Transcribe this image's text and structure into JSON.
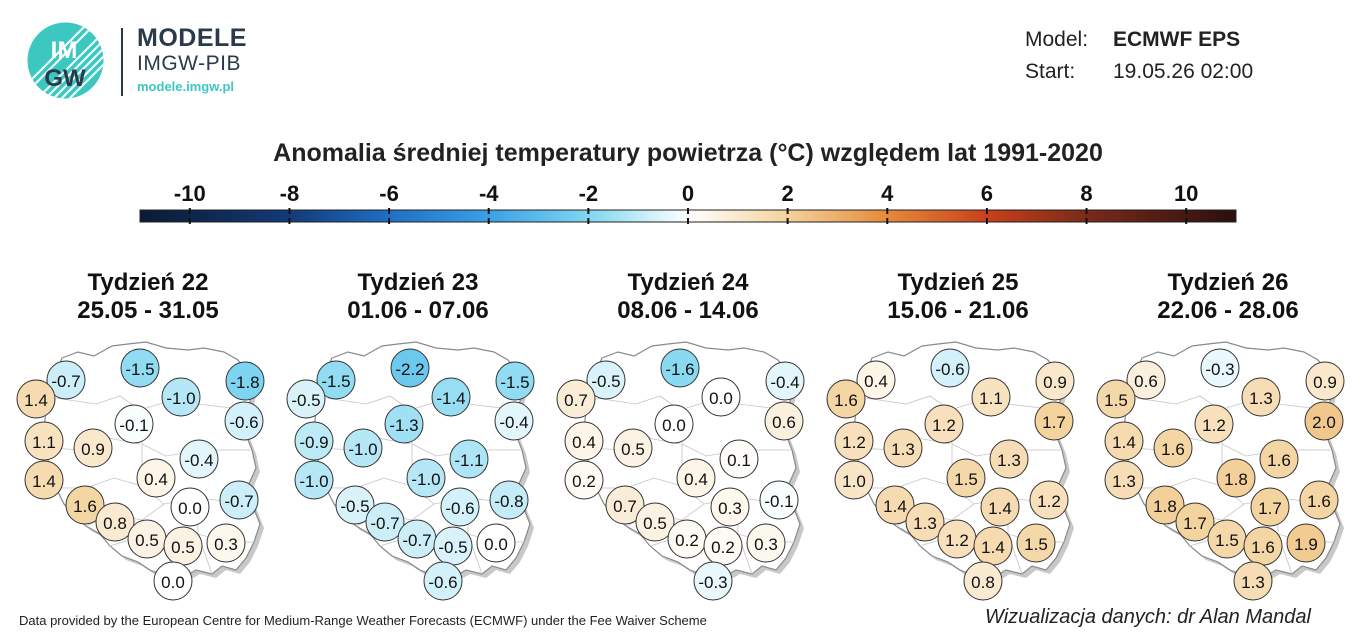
{
  "header": {
    "logo_top": "IM",
    "logo_bottom": "GW",
    "brand_name": "MODELE",
    "brand_sub": "IMGW-PIB",
    "brand_url": "modele.imgw.pl",
    "model_label": "Model:",
    "model_value": "ECMWF EPS",
    "start_label": "Start:",
    "start_value": "19.05.26 02:00"
  },
  "title": "Anomalia średniej temperatury powietrza (°C) względem lat 1991-2020",
  "colorbar": {
    "min": -11,
    "max": 11,
    "ticks": [
      -10,
      -8,
      -6,
      -4,
      -2,
      0,
      2,
      4,
      6,
      8,
      10
    ],
    "tick_labels": [
      "-10",
      "-8",
      "-6",
      "-4",
      "-2",
      "0",
      "2",
      "4",
      "6",
      "8",
      "10"
    ],
    "stops": [
      {
        "v": -11,
        "color": "#0b1a33"
      },
      {
        "v": -8,
        "color": "#123a78"
      },
      {
        "v": -6,
        "color": "#1f6fc4"
      },
      {
        "v": -4,
        "color": "#3aa0e6"
      },
      {
        "v": -2,
        "color": "#7fd6f0"
      },
      {
        "v": 0,
        "color": "#ffffff"
      },
      {
        "v": 2,
        "color": "#f3d29c"
      },
      {
        "v": 4,
        "color": "#e68a3a"
      },
      {
        "v": 6,
        "color": "#c8401a"
      },
      {
        "v": 8,
        "color": "#7a2a1a"
      },
      {
        "v": 11,
        "color": "#2a0f0f"
      }
    ]
  },
  "weeks": [
    {
      "name": "Tydzień 22",
      "dates": "25.05 - 31.05",
      "stations": [
        {
          "id": "szczecin",
          "value": -0.7
        },
        {
          "id": "gdansk",
          "value": -1.5
        },
        {
          "id": "olsztyn",
          "value": -1.0
        },
        {
          "id": "suwalki",
          "value": -1.8
        },
        {
          "id": "bialystok",
          "value": -0.6
        },
        {
          "id": "gorzow",
          "value": 1.4
        },
        {
          "id": "bydgoszcz",
          "value": -0.1
        },
        {
          "id": "poznan",
          "value": 0.9
        },
        {
          "id": "zielona-gora",
          "value": 1.1
        },
        {
          "id": "warszawa",
          "value": -0.4
        },
        {
          "id": "lodz",
          "value": 0.4
        },
        {
          "id": "wroclaw-w",
          "value": 1.4
        },
        {
          "id": "wroclaw",
          "value": 1.6
        },
        {
          "id": "opole",
          "value": 0.8
        },
        {
          "id": "katowice",
          "value": 0.5
        },
        {
          "id": "krakow",
          "value": 0.5
        },
        {
          "id": "kielce",
          "value": 0.0
        },
        {
          "id": "lublin",
          "value": -0.7
        },
        {
          "id": "rzeszow",
          "value": 0.3
        },
        {
          "id": "zakopane",
          "value": 0.0
        }
      ]
    },
    {
      "name": "Tydzień 23",
      "dates": "01.06 - 07.06",
      "stations": [
        {
          "id": "szczecin",
          "value": -1.5
        },
        {
          "id": "gdansk",
          "value": -2.2
        },
        {
          "id": "olsztyn",
          "value": -1.4
        },
        {
          "id": "suwalki",
          "value": -1.5
        },
        {
          "id": "bialystok",
          "value": -0.4
        },
        {
          "id": "gorzow",
          "value": -0.5
        },
        {
          "id": "bydgoszcz",
          "value": -1.3
        },
        {
          "id": "poznan",
          "value": -1.0
        },
        {
          "id": "zielona-gora",
          "value": -0.9
        },
        {
          "id": "warszawa",
          "value": -1.1
        },
        {
          "id": "lodz",
          "value": -1.0
        },
        {
          "id": "wroclaw-w",
          "value": -1.0
        },
        {
          "id": "wroclaw",
          "value": -0.5
        },
        {
          "id": "opole",
          "value": -0.7
        },
        {
          "id": "katowice",
          "value": -0.7
        },
        {
          "id": "krakow",
          "value": -0.5
        },
        {
          "id": "kielce",
          "value": -0.6
        },
        {
          "id": "lublin",
          "value": -0.8
        },
        {
          "id": "rzeszow",
          "value": 0.0
        },
        {
          "id": "zakopane",
          "value": -0.6
        }
      ]
    },
    {
      "name": "Tydzień 24",
      "dates": "08.06 - 14.06",
      "stations": [
        {
          "id": "szczecin",
          "value": -0.5
        },
        {
          "id": "gdansk",
          "value": -1.6
        },
        {
          "id": "olsztyn",
          "value": 0.0
        },
        {
          "id": "suwalki",
          "value": -0.4
        },
        {
          "id": "bialystok",
          "value": 0.6
        },
        {
          "id": "gorzow",
          "value": 0.7
        },
        {
          "id": "bydgoszcz",
          "value": 0.0
        },
        {
          "id": "poznan",
          "value": 0.5
        },
        {
          "id": "zielona-gora",
          "value": 0.4
        },
        {
          "id": "warszawa",
          "value": 0.1
        },
        {
          "id": "lodz",
          "value": 0.4
        },
        {
          "id": "wroclaw-w",
          "value": 0.2
        },
        {
          "id": "wroclaw",
          "value": 0.7
        },
        {
          "id": "opole",
          "value": 0.5
        },
        {
          "id": "katowice",
          "value": 0.2
        },
        {
          "id": "krakow",
          "value": 0.2
        },
        {
          "id": "kielce",
          "value": 0.3
        },
        {
          "id": "lublin",
          "value": -0.1
        },
        {
          "id": "rzeszow",
          "value": 0.3
        },
        {
          "id": "zakopane",
          "value": -0.3
        }
      ]
    },
    {
      "name": "Tydzień 25",
      "dates": "15.06 - 21.06",
      "stations": [
        {
          "id": "szczecin",
          "value": 0.4
        },
        {
          "id": "gdansk",
          "value": -0.6
        },
        {
          "id": "olsztyn",
          "value": 1.1
        },
        {
          "id": "suwalki",
          "value": 0.9
        },
        {
          "id": "bialystok",
          "value": 1.7
        },
        {
          "id": "gorzow",
          "value": 1.6
        },
        {
          "id": "bydgoszcz",
          "value": 1.2
        },
        {
          "id": "poznan",
          "value": 1.3
        },
        {
          "id": "zielona-gora",
          "value": 1.2
        },
        {
          "id": "warszawa",
          "value": 1.3
        },
        {
          "id": "lodz",
          "value": 1.5
        },
        {
          "id": "wroclaw-w",
          "value": 1.0
        },
        {
          "id": "wroclaw",
          "value": 1.4
        },
        {
          "id": "opole",
          "value": 1.3
        },
        {
          "id": "katowice",
          "value": 1.2
        },
        {
          "id": "krakow",
          "value": 1.4
        },
        {
          "id": "kielce",
          "value": 1.4
        },
        {
          "id": "lublin",
          "value": 1.2
        },
        {
          "id": "rzeszow",
          "value": 1.5
        },
        {
          "id": "zakopane",
          "value": 0.8
        }
      ]
    },
    {
      "name": "Tydzień 26",
      "dates": "22.06 - 28.06",
      "stations": [
        {
          "id": "szczecin",
          "value": 0.6
        },
        {
          "id": "gdansk",
          "value": -0.3
        },
        {
          "id": "olsztyn",
          "value": 1.3
        },
        {
          "id": "suwalki",
          "value": 0.9
        },
        {
          "id": "bialystok",
          "value": 2.0
        },
        {
          "id": "gorzow",
          "value": 1.5
        },
        {
          "id": "bydgoszcz",
          "value": 1.2
        },
        {
          "id": "poznan",
          "value": 1.6
        },
        {
          "id": "zielona-gora",
          "value": 1.4
        },
        {
          "id": "warszawa",
          "value": 1.6
        },
        {
          "id": "lodz",
          "value": 1.8
        },
        {
          "id": "wroclaw-w",
          "value": 1.3
        },
        {
          "id": "wroclaw",
          "value": 1.8
        },
        {
          "id": "opole",
          "value": 1.7
        },
        {
          "id": "katowice",
          "value": 1.5
        },
        {
          "id": "krakow",
          "value": 1.6
        },
        {
          "id": "kielce",
          "value": 1.7
        },
        {
          "id": "lublin",
          "value": 1.6
        },
        {
          "id": "rzeszow",
          "value": 1.9
        },
        {
          "id": "zakopane",
          "value": 1.3
        }
      ]
    }
  ],
  "footer": {
    "left": "Data provided by the European Centre for Medium-Range Weather Forecasts (ECMWF) under the Fee Waiver Scheme",
    "right": "Wizualizacja danych: dr Alan Mandal"
  }
}
